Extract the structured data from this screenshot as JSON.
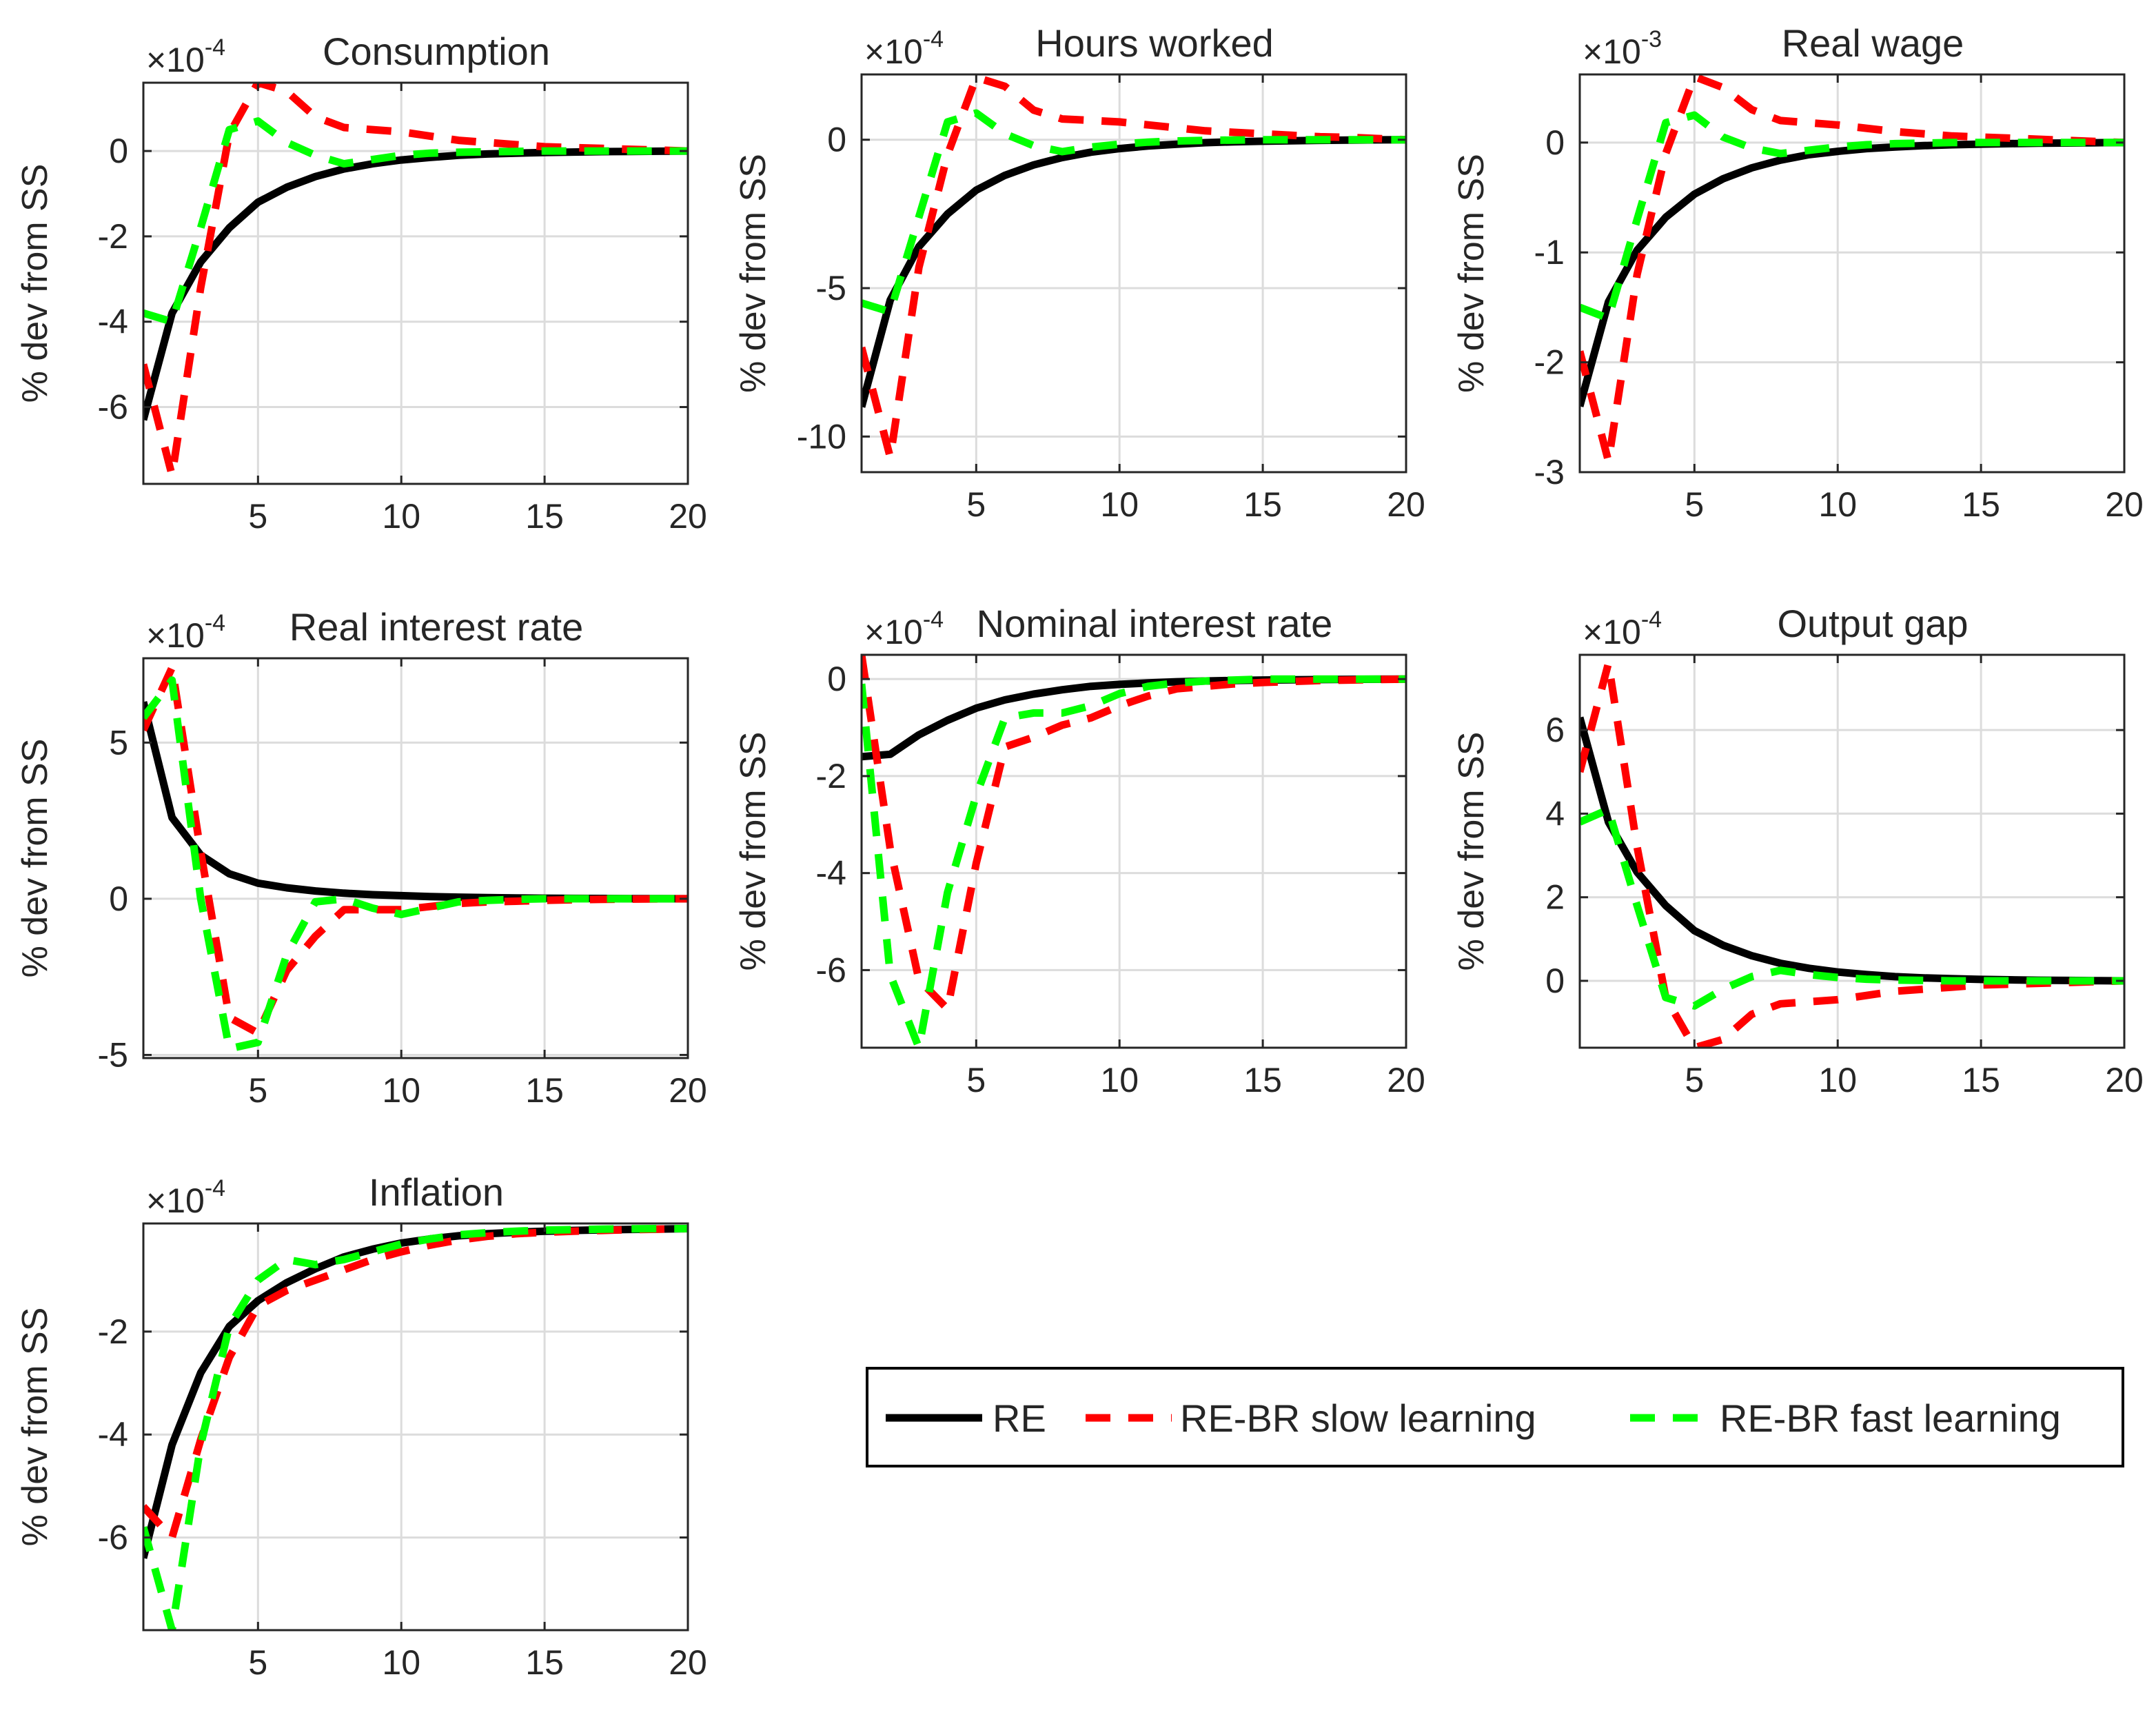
{
  "legend": {
    "entries": [
      {
        "label": "RE",
        "color": "#000000",
        "dash": "solid"
      },
      {
        "label": "RE-BR slow learning",
        "color": "#ff0000",
        "dash": "dashed"
      },
      {
        "label": "RE-BR fast learning",
        "color": "#00ff00",
        "dash": "dashed"
      }
    ]
  },
  "chart_data": [
    {
      "type": "line",
      "title": "Consumption",
      "ylabel": "% dev from SS",
      "multiplier": {
        "base": "×10",
        "exp": "-4"
      },
      "xlim": [
        1,
        20
      ],
      "ylim": [
        -7.8,
        1.6
      ],
      "xticks": [
        5,
        10,
        15,
        20
      ],
      "yticks": [
        -6,
        -4,
        -2,
        0
      ],
      "x": [
        1,
        2,
        3,
        4,
        5,
        6,
        7,
        8,
        9,
        10,
        11,
        12,
        13,
        14,
        15,
        16,
        17,
        18,
        19,
        20
      ],
      "series": [
        {
          "name": "RE",
          "values": [
            -6.3,
            -3.8,
            -2.6,
            -1.8,
            -1.2,
            -0.85,
            -0.6,
            -0.42,
            -0.3,
            -0.21,
            -0.15,
            -0.1,
            -0.07,
            -0.05,
            -0.035,
            -0.025,
            -0.015,
            -0.01,
            -0.005,
            0
          ]
        },
        {
          "name": "RE-BR slow learning",
          "values": [
            -5.0,
            -7.6,
            -3.2,
            0.4,
            1.6,
            1.4,
            0.8,
            0.55,
            0.5,
            0.45,
            0.35,
            0.25,
            0.2,
            0.15,
            0.1,
            0.08,
            0.06,
            0.04,
            0.02,
            0
          ]
        },
        {
          "name": "RE-BR fast learning",
          "values": [
            -3.8,
            -4.0,
            -1.8,
            0.5,
            0.7,
            0.2,
            -0.1,
            -0.3,
            -0.2,
            -0.1,
            -0.05,
            -0.03,
            -0.02,
            -0.01,
            0,
            0,
            0,
            0,
            0,
            0
          ]
        }
      ]
    },
    {
      "type": "line",
      "title": "Hours worked",
      "ylabel": "% dev from SS",
      "multiplier": {
        "base": "×10",
        "exp": "-4"
      },
      "xlim": [
        1,
        20
      ],
      "ylim": [
        -11.2,
        2.2
      ],
      "xticks": [
        5,
        10,
        15,
        20
      ],
      "yticks": [
        -10,
        -5,
        0
      ],
      "x": [
        1,
        2,
        3,
        4,
        5,
        6,
        7,
        8,
        9,
        10,
        11,
        12,
        13,
        14,
        15,
        16,
        17,
        18,
        19,
        20
      ],
      "series": [
        {
          "name": "RE",
          "values": [
            -9.0,
            -5.4,
            -3.6,
            -2.5,
            -1.7,
            -1.2,
            -0.85,
            -0.6,
            -0.42,
            -0.3,
            -0.21,
            -0.15,
            -0.1,
            -0.07,
            -0.05,
            -0.035,
            -0.02,
            -0.01,
            -0.005,
            0
          ]
        },
        {
          "name": "RE-BR slow learning",
          "values": [
            -7.0,
            -10.7,
            -4.3,
            -0.5,
            2.1,
            1.8,
            1.0,
            0.7,
            0.65,
            0.6,
            0.5,
            0.4,
            0.3,
            0.25,
            0.2,
            0.15,
            0.1,
            0.08,
            0.04,
            0
          ]
        },
        {
          "name": "RE-BR fast learning",
          "values": [
            -5.5,
            -5.8,
            -2.6,
            0.6,
            0.9,
            0.2,
            -0.2,
            -0.4,
            -0.25,
            -0.15,
            -0.08,
            -0.04,
            -0.02,
            -0.01,
            0,
            0,
            0,
            0,
            0,
            0
          ]
        }
      ]
    },
    {
      "type": "line",
      "title": "Real wage",
      "ylabel": "% dev from SS",
      "multiplier": {
        "base": "×10",
        "exp": "-3"
      },
      "xlim": [
        1,
        20
      ],
      "ylim": [
        -3.0,
        0.62
      ],
      "xticks": [
        5,
        10,
        15,
        20
      ],
      "yticks": [
        -3,
        -2,
        -1,
        0
      ],
      "x": [
        1,
        2,
        3,
        4,
        5,
        6,
        7,
        8,
        9,
        10,
        11,
        12,
        13,
        14,
        15,
        16,
        17,
        18,
        19,
        20
      ],
      "series": [
        {
          "name": "RE",
          "values": [
            -2.4,
            -1.45,
            -0.98,
            -0.68,
            -0.47,
            -0.33,
            -0.23,
            -0.16,
            -0.11,
            -0.08,
            -0.055,
            -0.04,
            -0.028,
            -0.02,
            -0.014,
            -0.01,
            -0.006,
            -0.004,
            -0.002,
            0
          ]
        },
        {
          "name": "RE-BR slow learning",
          "values": [
            -1.9,
            -2.9,
            -1.2,
            -0.1,
            0.6,
            0.5,
            0.3,
            0.2,
            0.18,
            0.16,
            0.13,
            0.1,
            0.08,
            0.06,
            0.05,
            0.04,
            0.03,
            0.02,
            0.01,
            0
          ]
        },
        {
          "name": "RE-BR fast learning",
          "values": [
            -1.5,
            -1.6,
            -0.7,
            0.18,
            0.25,
            0.05,
            -0.05,
            -0.1,
            -0.07,
            -0.04,
            -0.02,
            -0.01,
            -0.005,
            0,
            0,
            0,
            0,
            0,
            0,
            0
          ]
        }
      ]
    },
    {
      "type": "line",
      "title": "Real interest rate",
      "ylabel": "% dev from SS",
      "multiplier": {
        "base": "×10",
        "exp": "-4"
      },
      "xlim": [
        1,
        20
      ],
      "ylim": [
        -5.1,
        7.7
      ],
      "xticks": [
        5,
        10,
        15,
        20
      ],
      "yticks": [
        -5,
        0,
        5
      ],
      "x": [
        1,
        2,
        3,
        4,
        5,
        6,
        7,
        8,
        9,
        10,
        11,
        12,
        13,
        14,
        15,
        16,
        17,
        18,
        19,
        20
      ],
      "series": [
        {
          "name": "RE",
          "values": [
            6.3,
            2.6,
            1.4,
            0.8,
            0.5,
            0.35,
            0.25,
            0.18,
            0.13,
            0.1,
            0.07,
            0.05,
            0.035,
            0.025,
            0.018,
            0.012,
            0.008,
            0.005,
            0.002,
            0
          ]
        },
        {
          "name": "RE-BR slow learning",
          "values": [
            5.4,
            7.4,
            1.5,
            -3.8,
            -4.3,
            -2.3,
            -1.2,
            -0.35,
            -0.35,
            -0.35,
            -0.25,
            -0.15,
            -0.1,
            -0.08,
            -0.05,
            -0.03,
            -0.02,
            -0.01,
            -0.005,
            0
          ]
        },
        {
          "name": "RE-BR fast learning",
          "values": [
            5.8,
            7.0,
            0.0,
            -4.8,
            -4.6,
            -1.8,
            -0.1,
            0.0,
            -0.3,
            -0.5,
            -0.3,
            -0.1,
            -0.05,
            -0.02,
            0,
            0,
            0,
            0,
            0,
            0
          ]
        }
      ]
    },
    {
      "type": "line",
      "title": "Nominal interest rate",
      "ylabel": "% dev from SS",
      "multiplier": {
        "base": "×10",
        "exp": "-4"
      },
      "xlim": [
        1,
        20
      ],
      "ylim": [
        -7.6,
        0.5
      ],
      "xticks": [
        5,
        10,
        15,
        20
      ],
      "yticks": [
        -6,
        -4,
        -2,
        0
      ],
      "x": [
        1,
        2,
        3,
        4,
        5,
        6,
        7,
        8,
        9,
        10,
        11,
        12,
        13,
        14,
        15,
        16,
        17,
        18,
        19,
        20
      ],
      "series": [
        {
          "name": "RE",
          "values": [
            -1.6,
            -1.55,
            -1.15,
            -0.85,
            -0.6,
            -0.43,
            -0.31,
            -0.22,
            -0.15,
            -0.11,
            -0.08,
            -0.055,
            -0.04,
            -0.028,
            -0.02,
            -0.014,
            -0.01,
            -0.006,
            -0.003,
            0
          ]
        },
        {
          "name": "RE-BR slow learning",
          "values": [
            0.5,
            -3.5,
            -6.2,
            -6.8,
            -3.8,
            -1.4,
            -1.2,
            -0.95,
            -0.8,
            -0.55,
            -0.35,
            -0.2,
            -0.15,
            -0.1,
            -0.07,
            -0.05,
            -0.03,
            -0.02,
            -0.01,
            0
          ]
        },
        {
          "name": "RE-BR fast learning",
          "values": [
            -0.1,
            -6.1,
            -7.6,
            -4.4,
            -2.4,
            -0.8,
            -0.7,
            -0.7,
            -0.55,
            -0.3,
            -0.15,
            -0.08,
            -0.04,
            -0.02,
            0,
            0,
            0,
            0,
            0,
            0
          ]
        }
      ]
    },
    {
      "type": "line",
      "title": "Output gap",
      "ylabel": "% dev from SS",
      "multiplier": {
        "base": "×10",
        "exp": "-4"
      },
      "xlim": [
        1,
        20
      ],
      "ylim": [
        -1.6,
        7.8
      ],
      "xticks": [
        5,
        10,
        15,
        20
      ],
      "yticks": [
        0,
        2,
        4,
        6
      ],
      "x": [
        1,
        2,
        3,
        4,
        5,
        6,
        7,
        8,
        9,
        10,
        11,
        12,
        13,
        14,
        15,
        16,
        17,
        18,
        19,
        20
      ],
      "series": [
        {
          "name": "RE",
          "values": [
            6.3,
            3.8,
            2.6,
            1.8,
            1.2,
            0.85,
            0.6,
            0.42,
            0.3,
            0.21,
            0.15,
            0.1,
            0.07,
            0.05,
            0.035,
            0.025,
            0.015,
            0.01,
            0.005,
            0
          ]
        },
        {
          "name": "RE-BR slow learning",
          "values": [
            5.0,
            7.6,
            3.2,
            -0.4,
            -1.6,
            -1.4,
            -0.8,
            -0.55,
            -0.5,
            -0.45,
            -0.35,
            -0.25,
            -0.2,
            -0.15,
            -0.1,
            -0.08,
            -0.06,
            -0.04,
            -0.02,
            0
          ]
        },
        {
          "name": "RE-BR fast learning",
          "values": [
            3.8,
            4.1,
            1.8,
            -0.4,
            -0.6,
            -0.2,
            0.1,
            0.25,
            0.15,
            0.08,
            0.04,
            0.02,
            0.01,
            0,
            0,
            0,
            0,
            0,
            0,
            0
          ]
        }
      ]
    },
    {
      "type": "line",
      "title": "Inflation",
      "ylabel": "% dev from SS",
      "multiplier": {
        "base": "×10",
        "exp": "-4"
      },
      "xlim": [
        1,
        20
      ],
      "ylim": [
        -7.8,
        0.1
      ],
      "xticks": [
        5,
        10,
        15,
        20
      ],
      "yticks": [
        -6,
        -4,
        -2
      ],
      "x": [
        1,
        2,
        3,
        4,
        5,
        6,
        7,
        8,
        9,
        10,
        11,
        12,
        13,
        14,
        15,
        16,
        17,
        18,
        19,
        20
      ],
      "series": [
        {
          "name": "RE",
          "values": [
            -6.4,
            -4.2,
            -2.8,
            -1.9,
            -1.4,
            -1.05,
            -0.78,
            -0.55,
            -0.4,
            -0.28,
            -0.2,
            -0.14,
            -0.1,
            -0.07,
            -0.05,
            -0.035,
            -0.025,
            -0.015,
            -0.008,
            0
          ]
        },
        {
          "name": "RE-BR slow learning",
          "values": [
            -5.4,
            -6.0,
            -4.1,
            -2.5,
            -1.5,
            -1.2,
            -1.0,
            -0.8,
            -0.6,
            -0.45,
            -0.32,
            -0.22,
            -0.15,
            -0.1,
            -0.07,
            -0.05,
            -0.035,
            -0.02,
            -0.01,
            0
          ]
        },
        {
          "name": "RE-BR fast learning",
          "values": [
            -5.8,
            -7.8,
            -4.2,
            -1.9,
            -1.0,
            -0.6,
            -0.7,
            -0.6,
            -0.45,
            -0.3,
            -0.2,
            -0.12,
            -0.08,
            -0.05,
            -0.03,
            -0.02,
            -0.01,
            -0.005,
            0,
            0
          ]
        }
      ]
    }
  ]
}
